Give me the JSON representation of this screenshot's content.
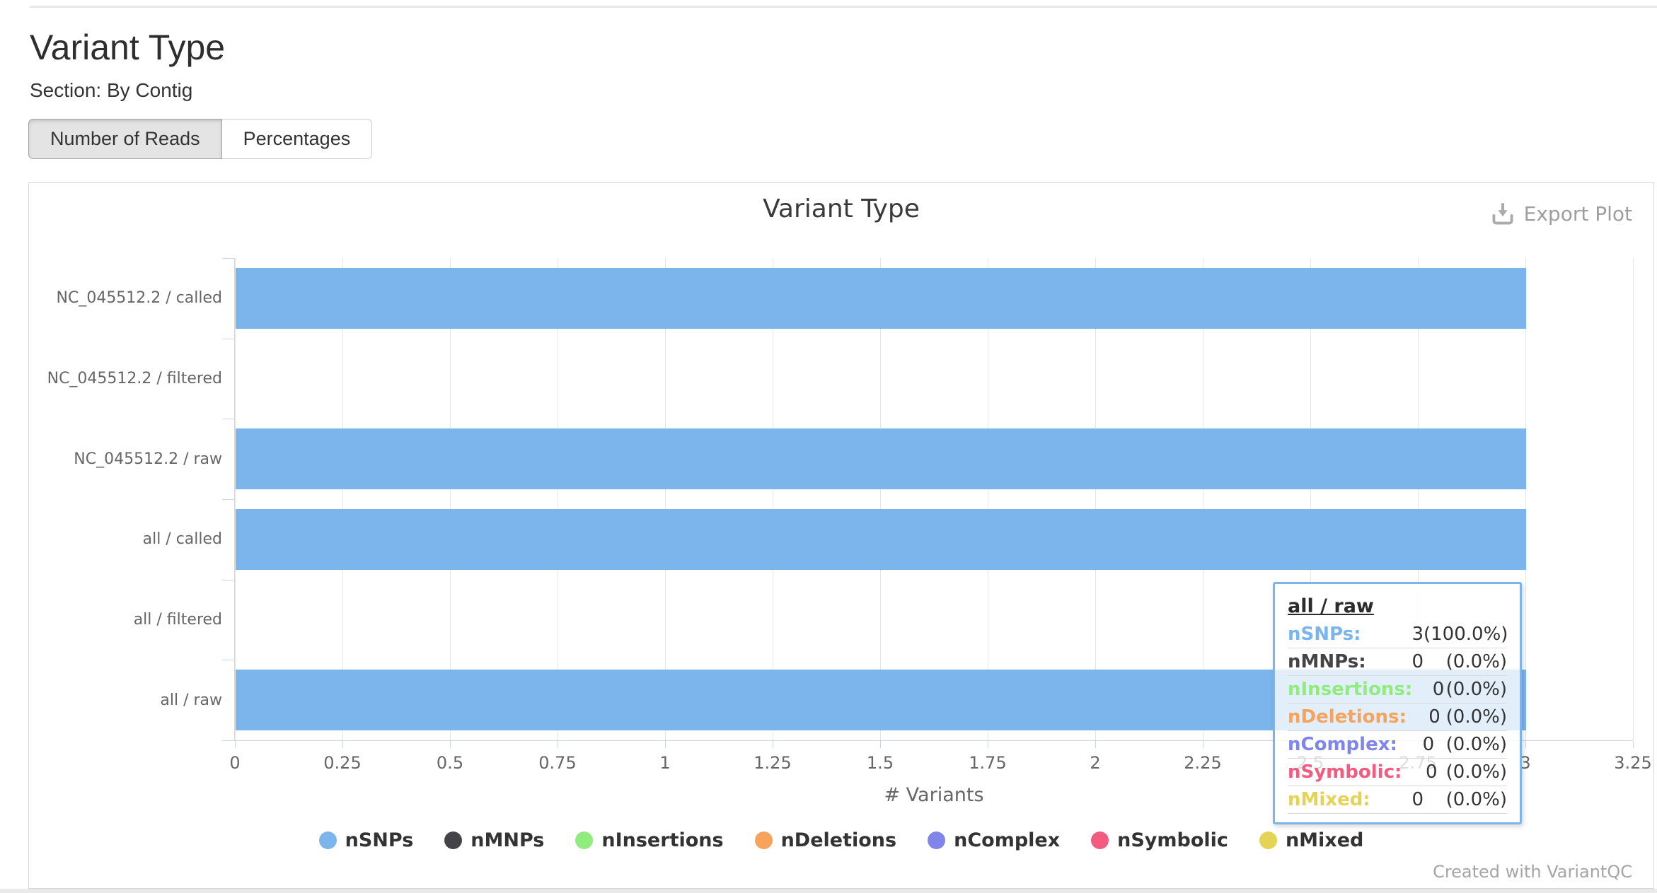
{
  "page": {
    "title": "Variant Type",
    "section_label": "Section: By Contig",
    "toggle_buttons": [
      {
        "label": "Number of Reads",
        "active": true
      },
      {
        "label": "Percentages",
        "active": false
      }
    ]
  },
  "panel": {
    "export_label": "Export Plot",
    "export_icon": "download-icon",
    "credit": "Created with VariantQC"
  },
  "chart_data": {
    "type": "bar",
    "orientation": "horizontal",
    "title": "Variant Type",
    "categories": [
      "NC_045512.2 / called",
      "NC_045512.2 / filtered",
      "NC_045512.2 / raw",
      "all / called",
      "all / filtered",
      "all / raw"
    ],
    "series": [
      {
        "name": "nSNPs",
        "color": "#7cb5ec",
        "values": [
          3,
          0,
          3,
          3,
          0,
          3
        ]
      },
      {
        "name": "nMNPs",
        "color": "#434348",
        "values": [
          0,
          0,
          0,
          0,
          0,
          0
        ]
      },
      {
        "name": "nInsertions",
        "color": "#90ed7d",
        "values": [
          0,
          0,
          0,
          0,
          0,
          0
        ]
      },
      {
        "name": "nDeletions",
        "color": "#f7a35c",
        "values": [
          0,
          0,
          0,
          0,
          0,
          0
        ]
      },
      {
        "name": "nComplex",
        "color": "#8085e9",
        "values": [
          0,
          0,
          0,
          0,
          0,
          0
        ]
      },
      {
        "name": "nSymbolic",
        "color": "#f15c80",
        "values": [
          0,
          0,
          0,
          0,
          0,
          0
        ]
      },
      {
        "name": "nMixed",
        "color": "#e4d354",
        "values": [
          0,
          0,
          0,
          0,
          0,
          0
        ]
      }
    ],
    "xlabel": "# Variants",
    "xlim": [
      0,
      3.25
    ],
    "xticks": [
      0,
      0.25,
      0.5,
      0.75,
      1,
      1.25,
      1.5,
      1.75,
      2,
      2.25,
      2.5,
      2.75,
      3,
      3.25
    ],
    "grid": true,
    "legend_position": "bottom"
  },
  "tooltip": {
    "header": "all / raw",
    "rows": [
      {
        "label": "nSNPs",
        "value": "3",
        "pct": "(100.0%)",
        "color": "#7cb5ec"
      },
      {
        "label": "nMNPs",
        "value": "0",
        "pct": "(0.0%)",
        "color": "#434348"
      },
      {
        "label": "nInsertions",
        "value": "0",
        "pct": "(0.0%)",
        "color": "#90ed7d"
      },
      {
        "label": "nDeletions",
        "value": "0",
        "pct": "(0.0%)",
        "color": "#f7a35c"
      },
      {
        "label": "nComplex",
        "value": "0",
        "pct": "(0.0%)",
        "color": "#8085e9"
      },
      {
        "label": "nSymbolic",
        "value": "0",
        "pct": "(0.0%)",
        "color": "#f15c80"
      },
      {
        "label": "nMixed",
        "value": "0",
        "pct": "(0.0%)",
        "color": "#e4d354"
      }
    ]
  },
  "colors": {
    "bar_blue": "#7cb5ec",
    "axis_line": "#ccd6eb",
    "gridline": "#e6e6e6",
    "tooltip_border": "#7cb5ec"
  }
}
